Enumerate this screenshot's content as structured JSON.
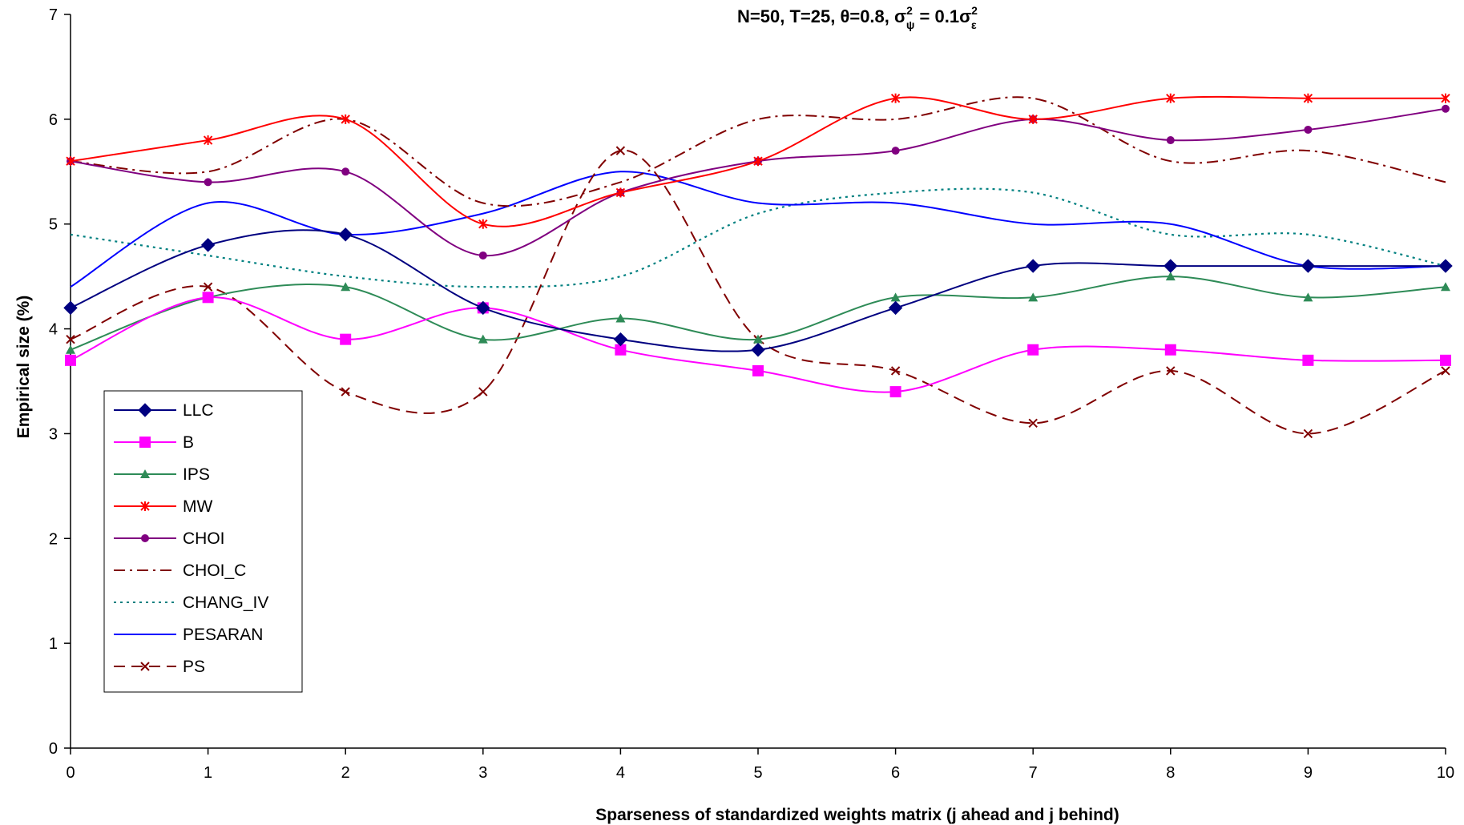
{
  "chart_data": {
    "type": "line",
    "title": {
      "main": "N=50, T=25, θ=0.8, σ",
      "sup1": "2",
      "sub1": "ψ",
      "mid": " = 0.1σ",
      "sup2": "2",
      "sub2": "ε"
    },
    "xlabel": "Sparseness of standardized weights matrix (j ahead and j behind)",
    "ylabel": "Empirical size (%)",
    "x": [
      0,
      1,
      2,
      3,
      4,
      5,
      6,
      7,
      8,
      9,
      10
    ],
    "xlim": [
      0,
      10
    ],
    "ylim": [
      0,
      7
    ],
    "xticks": [
      "0",
      "1",
      "2",
      "3",
      "4",
      "5",
      "6",
      "7",
      "8",
      "9",
      "10"
    ],
    "yticks": [
      "0",
      "1",
      "2",
      "3",
      "4",
      "5",
      "6",
      "7"
    ],
    "legend_position": "left-bottom",
    "grid": false,
    "series": [
      {
        "name": "LLC",
        "color": "#000080",
        "dash": "solid",
        "marker": "diamond",
        "values": [
          4.2,
          4.8,
          4.9,
          4.2,
          3.9,
          3.8,
          4.2,
          4.6,
          4.6,
          4.6,
          4.6
        ]
      },
      {
        "name": "B",
        "color": "#ff00ff",
        "dash": "solid",
        "marker": "square",
        "values": [
          3.7,
          4.3,
          3.9,
          4.2,
          3.8,
          3.6,
          3.4,
          3.8,
          3.8,
          3.7,
          3.7
        ]
      },
      {
        "name": "IPS",
        "color": "#2e8b57",
        "dash": "solid",
        "marker": "triangle",
        "values": [
          3.8,
          4.3,
          4.4,
          3.9,
          4.1,
          3.9,
          4.3,
          4.3,
          4.5,
          4.3,
          4.4
        ]
      },
      {
        "name": "MW",
        "color": "#ff0000",
        "dash": "solid",
        "marker": "star",
        "values": [
          5.6,
          5.8,
          6.0,
          5.0,
          5.3,
          5.6,
          6.2,
          6.0,
          6.2,
          6.2,
          6.2
        ]
      },
      {
        "name": "CHOI",
        "color": "#800080",
        "dash": "solid",
        "marker": "circle",
        "values": [
          5.6,
          5.4,
          5.5,
          4.7,
          5.3,
          5.6,
          5.7,
          6.0,
          5.8,
          5.9,
          6.1
        ]
      },
      {
        "name": "CHOI_C",
        "color": "#800000",
        "dash": "dashdot",
        "marker": "none",
        "values": [
          5.6,
          5.5,
          6.0,
          5.2,
          5.4,
          6.0,
          6.0,
          6.2,
          5.6,
          5.7,
          5.4
        ]
      },
      {
        "name": "CHANG_IV",
        "color": "#008080",
        "dash": "dot",
        "marker": "none",
        "values": [
          4.9,
          4.7,
          4.5,
          4.4,
          4.5,
          5.1,
          5.3,
          5.3,
          4.9,
          4.9,
          4.6
        ]
      },
      {
        "name": "PESARAN",
        "color": "#0000ff",
        "dash": "solid",
        "marker": "none",
        "values": [
          4.4,
          5.2,
          4.9,
          5.1,
          5.5,
          5.2,
          5.2,
          5.0,
          5.0,
          4.6,
          4.6
        ]
      },
      {
        "name": "PS",
        "color": "#800000",
        "dash": "dash",
        "marker": "x",
        "values": [
          3.9,
          4.4,
          3.4,
          3.4,
          5.7,
          3.9,
          3.6,
          3.1,
          3.6,
          3.0,
          3.6
        ]
      }
    ]
  }
}
